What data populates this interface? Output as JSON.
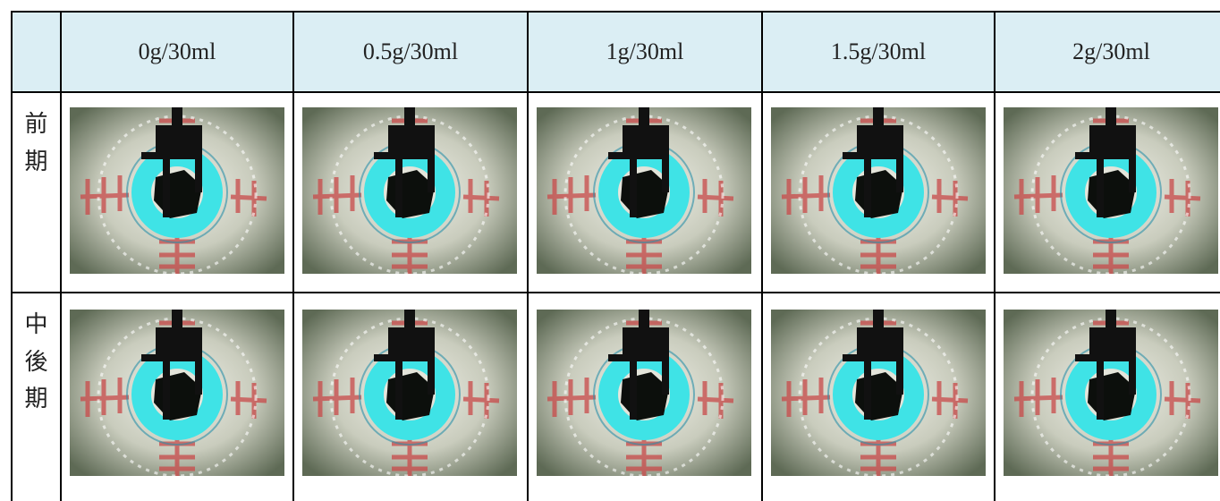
{
  "table": {
    "columns": [
      "0g/30ml",
      "0.5g/30ml",
      "1g/30ml",
      "1.5g/30ml",
      "2g/30ml"
    ],
    "rows": [
      {
        "label": "前期"
      },
      {
        "label": "中後期"
      }
    ]
  }
}
